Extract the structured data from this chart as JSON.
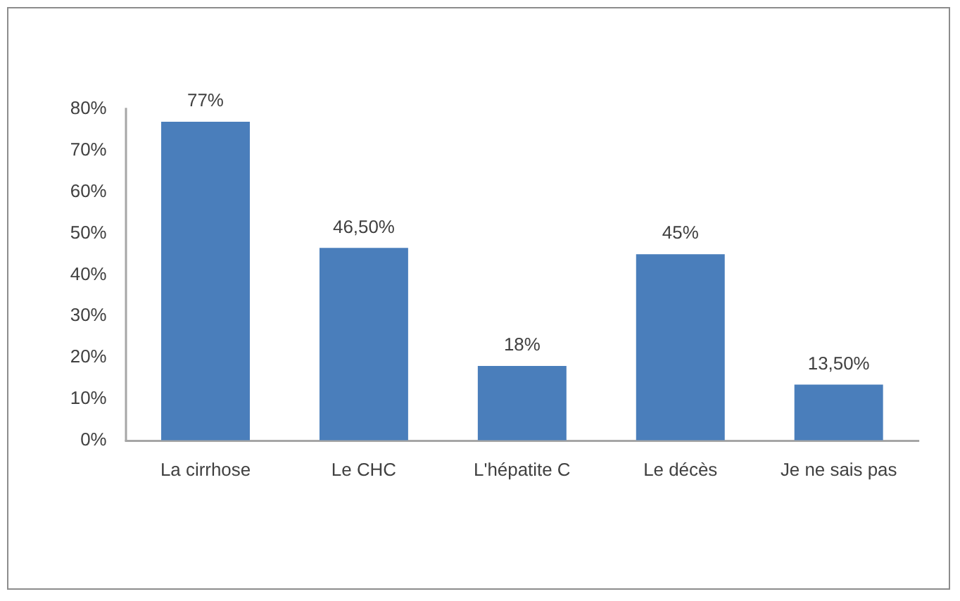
{
  "chart_data": {
    "type": "bar",
    "categories": [
      "La cirrhose",
      "Le CHC",
      "L'hépatite C",
      "Le décès",
      "Je ne sais pas"
    ],
    "values": [
      77,
      46.5,
      18,
      45,
      13.5
    ],
    "value_labels": [
      "77%",
      "46,50%",
      "18%",
      "45%",
      "13,50%"
    ],
    "color": "#4a7ebb",
    "ylim": [
      0,
      80
    ],
    "yticks": [
      {
        "value": 0,
        "label": "0%"
      },
      {
        "value": 10,
        "label": "10%"
      },
      {
        "value": 20,
        "label": "20%"
      },
      {
        "value": 30,
        "label": "30%"
      },
      {
        "value": 40,
        "label": "40%"
      },
      {
        "value": 50,
        "label": "50%"
      },
      {
        "value": 60,
        "label": "60%"
      },
      {
        "value": 70,
        "label": "70%"
      },
      {
        "value": 80,
        "label": "80%"
      }
    ]
  }
}
